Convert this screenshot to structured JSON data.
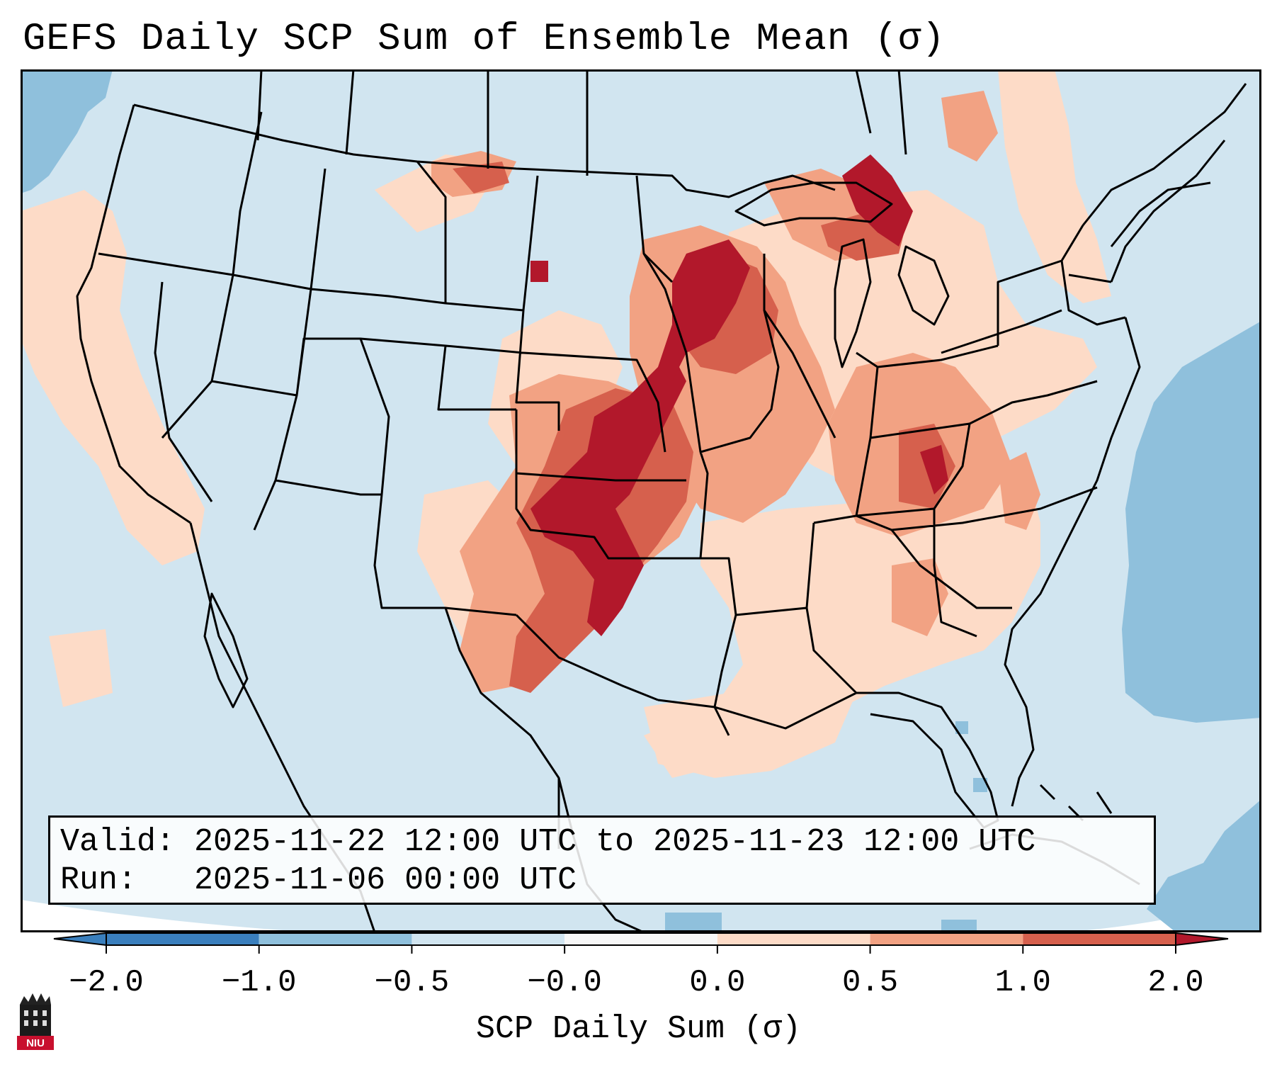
{
  "title": "GEFS Daily SCP Sum of Ensemble Mean (σ)",
  "info": {
    "valid_label": "Valid:",
    "valid_value": "2025-11-22 12:00 UTC to 2025-11-23 12:00 UTC",
    "run_label": "Run:",
    "run_value": "2025-11-06 00:00 UTC"
  },
  "colorbar": {
    "label": "SCP Daily Sum (σ)",
    "ticks": [
      "−2.0",
      "−1.0",
      "−0.5",
      "−0.0",
      "0.0",
      "0.5",
      "1.0",
      "2.0"
    ],
    "colors": [
      "#3a7fbd",
      "#8fc0dc",
      "#d1e5f0",
      "#f7f7f7",
      "#fddbc7",
      "#f2a283",
      "#d6604d",
      "#b2182b"
    ]
  },
  "logo": {
    "text": "NIU",
    "icon": "university-tower-icon"
  },
  "regions": [
    {
      "name": "central-plains-corridor",
      "level": 3
    },
    {
      "name": "upper-midwest",
      "level": 3
    },
    {
      "name": "upper-michigan",
      "level": 3
    },
    {
      "name": "ohio-valley",
      "level": 2
    },
    {
      "name": "southeast",
      "level": 1
    },
    {
      "name": "pacific-coast",
      "level": 1
    },
    {
      "name": "western-atlantic",
      "level": -1
    }
  ]
}
